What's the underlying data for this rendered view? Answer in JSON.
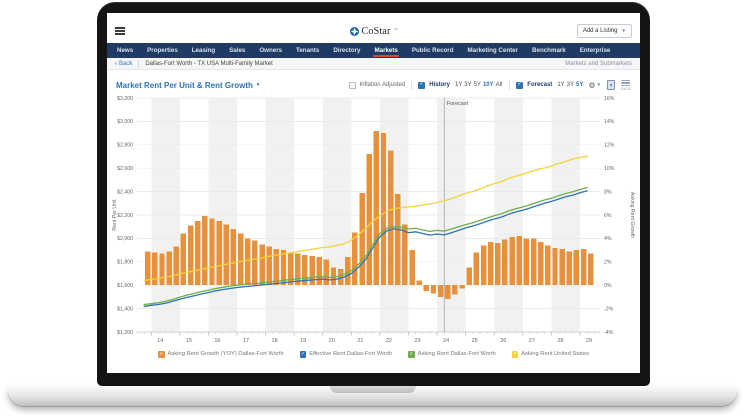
{
  "topbar": {
    "logo_text": "CoStar",
    "logo_tm": "™",
    "add_listing_label": "Add a Listing"
  },
  "navbar": {
    "items": [
      "News",
      "Properties",
      "Leasing",
      "Sales",
      "Owners",
      "Tenants",
      "Directory",
      "Markets",
      "Public Record",
      "Marketing Center",
      "Benchmark",
      "Enterprise"
    ],
    "active": "Markets"
  },
  "breadcrumb": {
    "back_chevron": "‹",
    "back_label": "Back",
    "title": "Dallas-Fort Worth - TX USA Multi-Family Market",
    "right_label": "Markets and Submarkets"
  },
  "chart_header": {
    "title": "Market Rent Per Unit & Rent Growth",
    "inflation_label": "Inflation Adjusted",
    "inflation_checked": false,
    "history_label": "History",
    "history_checked": true,
    "history_ranges": [
      "1Y",
      "3Y",
      "5Y",
      "10Y",
      "All"
    ],
    "history_selected": "10Y",
    "forecast_label": "Forecast",
    "forecast_checked": true,
    "forecast_ranges": [
      "1Y",
      "3Y",
      "5Y"
    ],
    "forecast_selected": "5Y",
    "data_icon_caption": "DATA"
  },
  "chart_data": {
    "type": "combo (bar + line)",
    "title": "Market Rent Per Unit & Rent Growth",
    "forecast_marker": {
      "x": 24.25,
      "label": "Forecast"
    },
    "grid": true,
    "band_fill": "#f1f1f2",
    "axes": {
      "x": {
        "domain": [
          13.5,
          29.7
        ],
        "year_labels": [
          "14",
          "15",
          "16",
          "17",
          "18",
          "19",
          "20",
          "21",
          "22",
          "23",
          "24",
          "25",
          "26",
          "27",
          "28",
          "29"
        ],
        "year_values": [
          14,
          15,
          16,
          17,
          18,
          19,
          20,
          21,
          22,
          23,
          24,
          25,
          26,
          27,
          28,
          29
        ]
      },
      "left": {
        "title": "Rent Per Unit",
        "domain": [
          1200,
          3200
        ],
        "tick_values": [
          3200,
          3000,
          2800,
          2600,
          2400,
          2200,
          2000,
          1800,
          1600,
          1400,
          1200
        ],
        "tick_labels": [
          "$3,200",
          "$3,000",
          "$2,800",
          "$2,600",
          "$2,400",
          "$2,200",
          "$2,000",
          "$1,800",
          "$1,600",
          "$1,400",
          "$1,200"
        ]
      },
      "right": {
        "title": "Asking Rent Growth",
        "domain": [
          -4,
          16
        ],
        "tick_values": [
          16,
          14,
          12,
          10,
          8,
          6,
          4,
          2,
          0,
          -2,
          -4
        ],
        "tick_labels": [
          "16%",
          "14%",
          "12%",
          "10%",
          "8%",
          "6%",
          "4%",
          "2%",
          "0%",
          "-2%",
          "-4%"
        ]
      }
    },
    "x_start": 13.75,
    "x_step": 0.25,
    "series": [
      {
        "name": "Asking Rent Growth (YOY) Dallas-Fort Worth",
        "type": "bar",
        "axis": "right",
        "color": "#e8913c",
        "unit": "%",
        "values": [
          2.9,
          2.8,
          2.7,
          2.9,
          3.3,
          4.4,
          5.1,
          5.5,
          5.9,
          5.7,
          5.5,
          5.2,
          4.8,
          4.4,
          4.0,
          3.8,
          3.5,
          3.3,
          3.1,
          3.0,
          2.8,
          2.7,
          2.6,
          2.5,
          2.4,
          2.2,
          1.5,
          1.4,
          2.4,
          4.5,
          7.9,
          11.2,
          13.2,
          13.0,
          11.5,
          7.8,
          5.2,
          3.0,
          0.4,
          -0.5,
          -0.7,
          -1.0,
          -1.2,
          -0.8,
          -0.3,
          1.5,
          2.8,
          3.4,
          3.7,
          3.6,
          3.9,
          4.1,
          4.2,
          4.0,
          4.0,
          3.7,
          3.4,
          3.2,
          3.1,
          2.9,
          3.0,
          3.1,
          2.7
        ]
      },
      {
        "name": "Effective Rent Dallas-Fort Worth",
        "type": "line",
        "axis": "left",
        "color": "#2e74b5",
        "unit": "$",
        "values": [
          1420,
          1428,
          1435,
          1446,
          1462,
          1480,
          1496,
          1510,
          1525,
          1538,
          1552,
          1562,
          1572,
          1580,
          1587,
          1592,
          1598,
          1605,
          1612,
          1618,
          1625,
          1632,
          1638,
          1643,
          1648,
          1652,
          1645,
          1652,
          1670,
          1700,
          1752,
          1820,
          1920,
          2015,
          2065,
          2082,
          2072,
          2050,
          2056,
          2042,
          2028,
          2038,
          2030,
          2048,
          2068,
          2090,
          2106,
          2126,
          2146,
          2166,
          2182,
          2206,
          2226,
          2240,
          2260,
          2280,
          2300,
          2316,
          2336,
          2356,
          2370,
          2390,
          2406
        ]
      },
      {
        "name": "Asking Rent Dallas-Fort Worth",
        "type": "line",
        "axis": "left",
        "color": "#6fae4b",
        "unit": "$",
        "values": [
          1435,
          1442,
          1450,
          1462,
          1478,
          1498,
          1515,
          1530,
          1545,
          1558,
          1572,
          1582,
          1592,
          1600,
          1607,
          1612,
          1618,
          1625,
          1632,
          1638,
          1645,
          1652,
          1658,
          1663,
          1668,
          1672,
          1666,
          1674,
          1694,
          1724,
          1778,
          1848,
          1948,
          2040,
          2086,
          2100,
          2094,
          2080,
          2086,
          2072,
          2060,
          2068,
          2062,
          2080,
          2098,
          2118,
          2134,
          2154,
          2174,
          2194,
          2210,
          2234,
          2254,
          2268,
          2288,
          2308,
          2328,
          2344,
          2364,
          2384,
          2398,
          2418,
          2434
        ]
      },
      {
        "name": "Asking Rent United States",
        "type": "line",
        "axis": "left",
        "color": "#f2d33c",
        "unit": "$",
        "values": [
          1640,
          1650,
          1658,
          1668,
          1682,
          1697,
          1710,
          1722,
          1735,
          1748,
          1760,
          1772,
          1785,
          1797,
          1808,
          1818,
          1828,
          1840,
          1852,
          1862,
          1872,
          1882,
          1892,
          1902,
          1912,
          1922,
          1928,
          1940,
          1955,
          1985,
          2030,
          2085,
          2145,
          2195,
          2235,
          2255,
          2262,
          2268,
          2275,
          2285,
          2295,
          2308,
          2322,
          2340,
          2362,
          2385,
          2402,
          2422,
          2448,
          2468,
          2485,
          2512,
          2532,
          2548,
          2568,
          2588,
          2602,
          2618,
          2640,
          2658,
          2678,
          2692,
          2702
        ]
      }
    ]
  },
  "legend": {
    "items": [
      {
        "label": "Asking Rent Growth (YOY) Dallas-Fort Worth",
        "color": "#e8913c",
        "checked": true
      },
      {
        "label": "Effective Rent Dallas-Fort Worth",
        "color": "#2e74b5",
        "checked": true
      },
      {
        "label": "Asking Rent Dallas-Fort Worth",
        "color": "#6fae4b",
        "checked": true
      },
      {
        "label": "Asking Rent United States",
        "color": "#f2d33c",
        "checked": true
      }
    ]
  }
}
